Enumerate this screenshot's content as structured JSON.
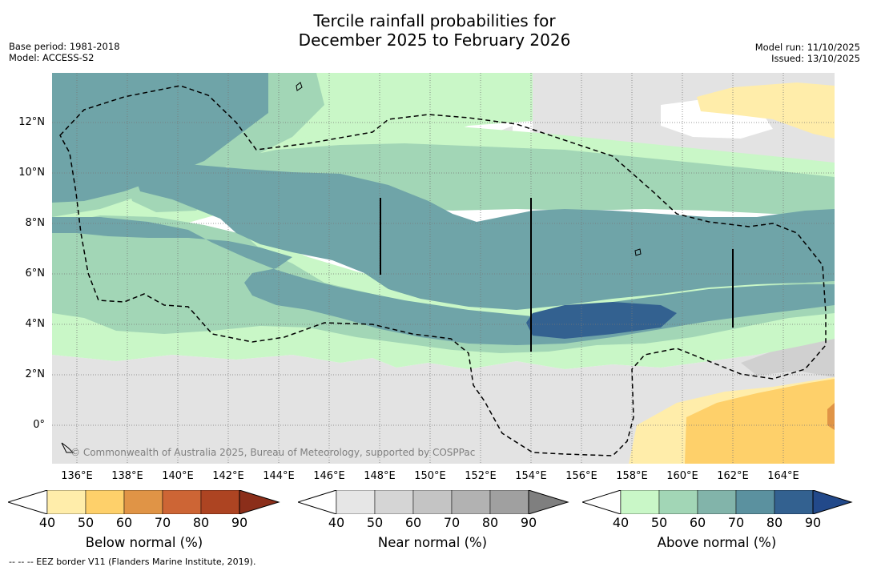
{
  "title": {
    "line1": "Tercile rainfall probabilities for",
    "line2": "December 2025 to February 2026"
  },
  "meta": {
    "base_period": "Base period: 1981-2018",
    "model": "Model: ACCESS-S2",
    "model_run": "Model run: 11/10/2025",
    "issued": "Issued: 13/10/2025"
  },
  "map": {
    "lat_labels": [
      "12°N",
      "10°N",
      "8°N",
      "6°N",
      "4°N",
      "2°N",
      "0°"
    ],
    "lon_labels": [
      "136°E",
      "138°E",
      "140°E",
      "142°E",
      "144°E",
      "146°E",
      "148°E",
      "150°E",
      "152°E",
      "154°E",
      "156°E",
      "158°E",
      "160°E",
      "162°E",
      "164°E"
    ],
    "copyright": "© Commonwealth of Australia 2025, Bureau of Meteorology, supported by COSPPac"
  },
  "colorbars": [
    {
      "title": "Below normal (%)",
      "ticks": [
        "40",
        "50",
        "60",
        "70",
        "80",
        "90"
      ],
      "colors": [
        "#ffedaa",
        "#fed06a",
        "#e09446",
        "#cd6535",
        "#ad4422"
      ],
      "extend_color": "#8b2e1a"
    },
    {
      "title": "Near normal (%)",
      "ticks": [
        "40",
        "50",
        "60",
        "70",
        "80",
        "90"
      ],
      "colors": [
        "#e6e6e6",
        "#d5d5d5",
        "#c4c4c4",
        "#b2b2b2",
        "#a0a0a0"
      ],
      "extend_color": "#7f7f7f"
    },
    {
      "title": "Above normal (%)",
      "ticks": [
        "40",
        "50",
        "60",
        "70",
        "80",
        "90"
      ],
      "colors": [
        "#c9f7c7",
        "#a2d6b6",
        "#82b4aa",
        "#5b919f",
        "#336190"
      ],
      "extend_color": "#22498a"
    }
  ],
  "footnote": "--  --  -- EEZ border V11 (Flanders Marine Institute, 2019)."
}
